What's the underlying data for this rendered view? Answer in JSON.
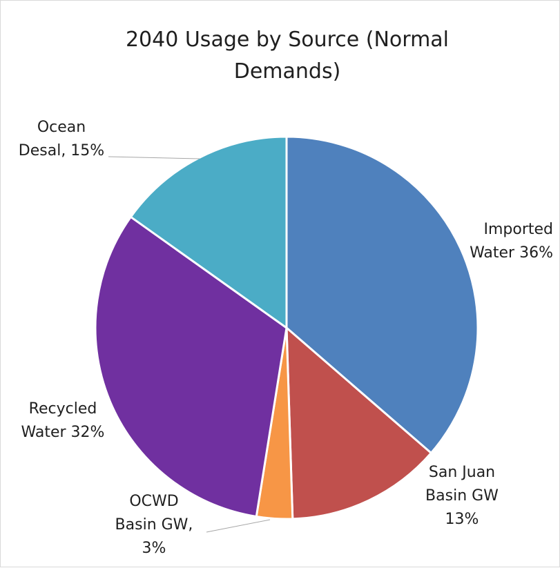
{
  "chart_data": {
    "type": "pie",
    "title": "2040 Usage by Source (Normal Demands)",
    "categories": [
      "Imported Water",
      "San Juan Basin GW",
      "OCWD Basin GW",
      "Recycled Water",
      "Ocean Desal"
    ],
    "values": [
      36,
      13,
      3,
      32,
      15
    ],
    "data_labels": [
      [
        "Imported",
        "Water  36%"
      ],
      [
        "San Juan",
        "Basin GW",
        "13%"
      ],
      [
        "OCWD",
        "Basin GW,",
        "3%"
      ],
      [
        "Recycled",
        "Water 32%"
      ],
      [
        "Ocean",
        "Desal, 15%"
      ]
    ],
    "colors": [
      "#4F81BD",
      "#C0504D",
      "#F79646",
      "#7030A0",
      "#4BACC6"
    ],
    "legend": "none",
    "start_angle": "top, clockwise"
  }
}
